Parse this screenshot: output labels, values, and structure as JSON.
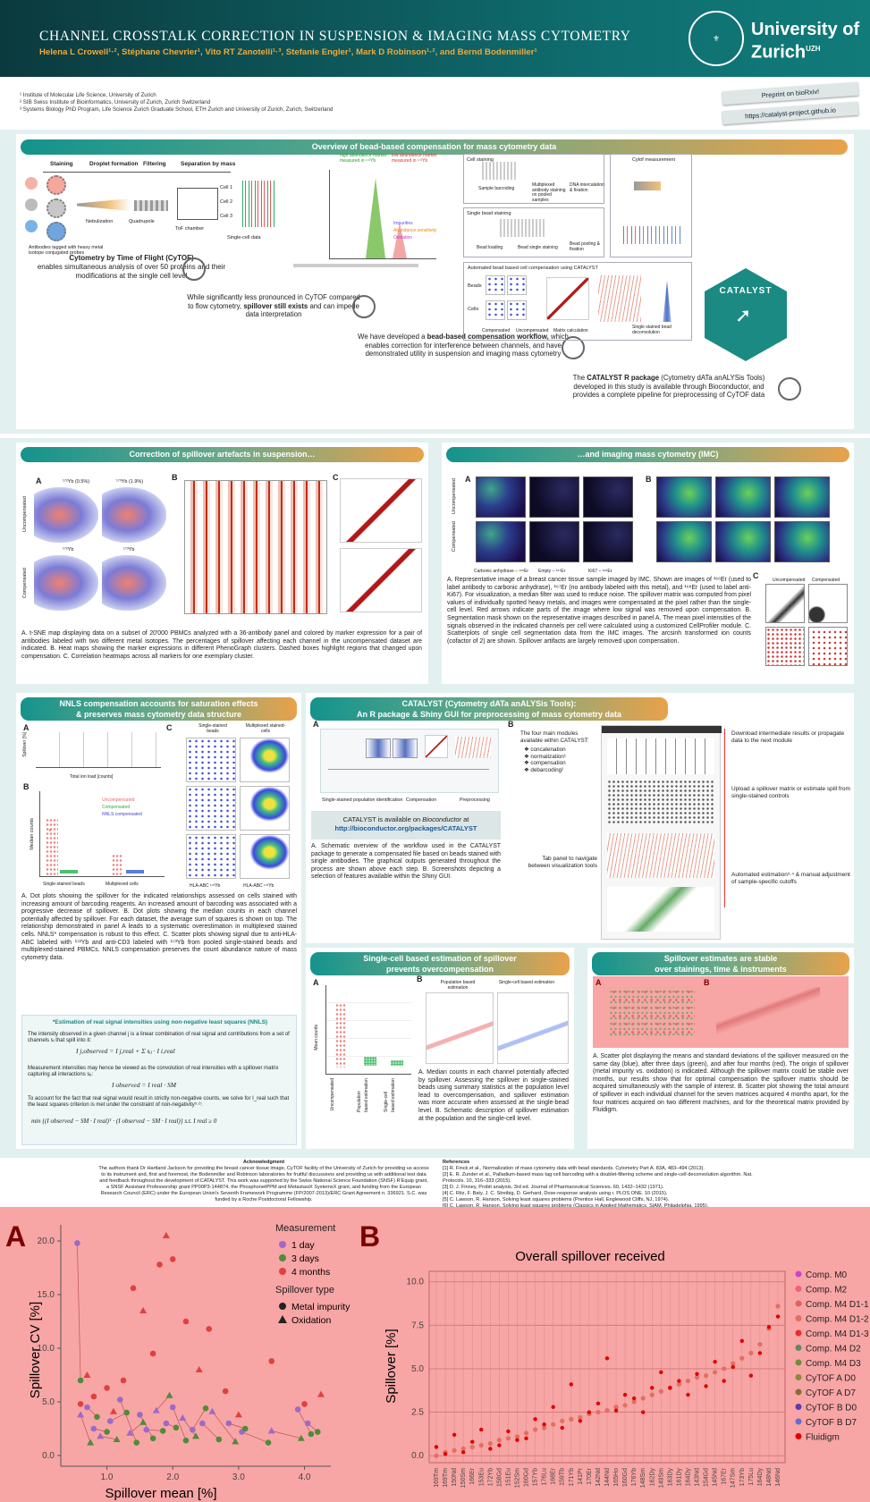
{
  "header": {
    "title": "CHANNEL CROSSTALK CORRECTION IN SUSPENSION & IMAGING MASS CYTOMETRY",
    "authors": "Helena L Crowell¹·², Stéphane Chevrier¹, Vito RT Zanotelli¹·³, Stefanie Engler¹, Mark D Robinson¹·², and Bernd Bodenmiller¹",
    "university": "University of Zurich",
    "uzh": "UZH",
    "preprint": "Preprint on bioRxiv!",
    "url": "https://catalyst-project.github.io"
  },
  "affiliations": [
    "¹ Institute of Molecular Life Science, University of Zurich",
    "² SIB Swiss Institute of Bioinformatics, University of Zurich, Zurich Switzerland",
    "³ Systems Biology PhD Program, Life Science Zurich Graduate School, ETH Zurich and University of Zurich, Zurich, Switzerland"
  ],
  "overview": {
    "title": "Overview of bead-based compensation for mass cytometry data",
    "steps": [
      "Staining",
      "Droplet formation",
      "Filtering",
      "Separation by mass"
    ],
    "labels": {
      "antibodies": "Antibodies tagged with heavy metal isotope conjugated probes",
      "nebulization": "Nebulization",
      "quadrupole": "Quadrupole",
      "tof": "ToF chamber",
      "singlecell": "Single-cell data",
      "cell1": "Cell 1",
      "cell2": "Cell 2",
      "cell3": "Cell 3",
      "high": "high abundance marker measured in ¹⁷²Yb",
      "low": "low abundance marker measured in ¹⁷³Yb",
      "impurities": "Impurities",
      "abund": "Abundance sensitivity",
      "oxid": "Oxidation"
    },
    "cytof_title": "Cytometry by Time of Flight (CyTOF)",
    "cytof_text": "enables simultaneous analysis of over 50 proteins and their modifications at the single cell level",
    "spill_text1": "While significantly less pronounced in CyTOF compared to flow cytometry,",
    "spill_bold": "spillover still exists",
    "spill_text2": "and can impede data interpretation",
    "work_text1": "We have developed a",
    "work_bold": "bead-based compensation workflow,",
    "work_text2": "which enables correction for interference between channels, and have demonstrated utility in suspension and imaging mass cytometry",
    "pkg_text1": "The",
    "pkg_bold": "CATALYST R package",
    "pkg_text2": "(Cytometry dATa anALYSis Tools) developed in this study is available through Bioconductor, and provides a complete pipeline for preprocessing of CyTOF data",
    "right": {
      "cellstain": "Cell staining",
      "barcoding": "Sample barcoding",
      "multiplex": "Multiplexed antibody staining on pooled samples",
      "dna": "DNA intercalation & fixation",
      "beadstain": "Single bead staining",
      "beadload": "Bead loading",
      "beadsingle": "Bead single staining",
      "beadpool": "Bead pooling & fixation",
      "cytof": "Cytof measurement",
      "auto": "Automated bead based cell compensation using CATALYST",
      "beads": "Beads",
      "cells": "Cells",
      "comp": "Compensated",
      "uncomp": "Uncompensated",
      "matrix": "Matrix calculation",
      "deconv": "Single stained bead deconvolution",
      "catalyst": "CATALYST"
    }
  },
  "susp": {
    "title": "Correction of spillover artefacts in suspension…",
    "a": "A",
    "b": "B",
    "c": "C",
    "yb1": "¹⁷²Yb (0.5%)",
    "yb2": "¹⁷³Yb (1.9%)",
    "yb3": "¹⁷²Yb",
    "yb4": "¹⁷³Yb",
    "uncomp": "Uncompensated",
    "comp": "Compensated",
    "caption": "A. t-SNE map displaying data on a subset of 20'000 PBMCs analyzed with a 36-antibody panel and colored by marker expression for a pair of antibodies labeled with two different metal isotopes. The percentages of spillover affecting each channel in the uncompensated dataset are indicated. B. Heat maps showing the marker expressions in different PhenoGraph clusters. Dashed boxes highlight regions that changed upon compensation. C. Correlation heatmaps across all markers for one exemplary cluster."
  },
  "imc": {
    "title": "…and imaging mass cytometry (IMC)",
    "a": "A",
    "b": "B",
    "c": "C",
    "uncomp": "Uncompensated",
    "comp": "Compensated",
    "l1": "Carbonic anhydrase – ¹⁶⁶Er",
    "l2": "Empty – ¹⁶⁷Er",
    "l3": "Ki67 – ¹⁶⁸Er",
    "caption": "A. Representative image of a breast cancer tissue sample imaged by IMC. Shown are images of ¹⁶⁶Er (used to label antibody to carbonic anhydrase), ¹⁶⁷Er (no antibody labeled with this metal), and ¹⁶⁸Er (used to label anti-Ki67). For visualization, a median filter was used to reduce noise. The spillover matrix was computed from pixel values of individually spotted heavy metals, and images were compensated at the pixel rather than the single-cell level. Red arrows indicate parts of the image where low signal was removed upon compensation. B. Segmentation mask shown on the representative images described in panel A. The mean pixel intensities of the signals observed in the indicated channels per cell were calculated using a customized CellProfiler module. C. Scatterplots of single cell segmentation data from the IMC images. The arcsinh transformed ion counts (cofactor of 2) are shown. Spillover artifacts are largely removed upon compensation."
  },
  "nnls": {
    "title1": "NNLS compensation accounts for saturation effects",
    "title2": "& preserves mass cytometry data structure",
    "a": "A",
    "b": "B",
    "c": "C",
    "xlabel": "Total ion load [counts]",
    "ylabel": "Spillover [%]",
    "medcounts": "Median counts",
    "single": "Single-stained beads",
    "multi": "Multiplexed cells",
    "leg": [
      "Uncompensated",
      "Compensated",
      "NNLS compensated"
    ],
    "sbeads": "Single-stained beads",
    "mcells": "Multiplexed stained-cells",
    "hla": "HLA-ABC ¹⁷²Yb",
    "caption": "A. Dot plots showing the spillover for the indicated relationships assessed on cells stained with increasing amount of barcoding reagents. An increased amount of barcoding was associated with a progressive decrease of spillover. B. Dot plots showing the median counts in each channel potentially affected by spillover. For each dataset, the average sum of squares is shown on top. The relationship demonstrated in panel A leads to a systematic overestimation in multiplexed stained cells. NNLS* compensation is robust to this effect. C. Scatter plots showing signal due to anti-HLA-ABC labeled with ¹⁷²Yb and anti-CD3 labeled with ¹⁷³Yb from pooled single-stained beads and multiplexed-stained PBMCs. NNLS compensation preserves the count abundance nature of mass cytometry data.",
    "box_title": "*Estimation of real signal intensities using non-negative least squares (NNLS)",
    "box1": "The intensity observed in a given channel j is a linear combination of real signal and contributions from a set of channels sᵢ that spill into it:",
    "box2": "Measurement intensities may hence be viewed as the convolution of real intensities with a spillover matrix capturing all interactions sᵢⱼ:",
    "box3": "To account for the fact that real signal would result in strictly non-negative counts, we solve for I_real such that the least squares criterion is met under the constraint of non-negativity⁵·⁶:",
    "eq1": "I j,observed = I j,real + Σ sᵢⱼ · I i,real",
    "eq2": "I observed = I real · SM",
    "eq3": "min {(I observed − SM · I real)ᵀ · (I observed − SM · I real)}  s.t. I real ≥ 0"
  },
  "cat": {
    "title1": "CATALYST (Cytometry dATa anALYSis Tools):",
    "title2": "An R package & Shiny GUI for preprocessing of mass cytometry data",
    "a": "A",
    "b": "B",
    "w1": "Single-stained population identification",
    "w2": "Compensation",
    "w3": "Preprocessing",
    "modules_intro": "The four main modules available within CATALYST:",
    "modules": [
      "concatenation",
      "normalization¹",
      "compensation",
      "debarcoding²"
    ],
    "avail1": "CATALYST is available on",
    "avail_i": "Bioconductor",
    "avail2": "at",
    "avail_url": "http://bioconductor.org/packages/CATALYST",
    "ann1": "Download intermediate results or propagate data to the next module",
    "ann2": "Upload a spillover matrix or estimate spill from single-stained controls",
    "ann3": "Automated estimation³·⁴ & manual adjustment of sample-specific cutoffs",
    "ann4": "Tab panel to navigate between visualization tools",
    "caption": "A. Schematic overview of the workflow used in the CATALYST package to generate a compensated file based on beads stained with single antibodies. The graphical outputs generated throughout the process are shown above each step. B. Screenshots depicting a selection of features available within the Shiny GUI."
  },
  "sc": {
    "title1": "Single-cell based estimation of spillover",
    "title2": "prevents overcompensation",
    "a": "A",
    "b": "B",
    "ylabel": "Mean counts",
    "x1": "Uncompensated",
    "x2": "Population based estimation",
    "x3": "Single-cell based estimation",
    "pop": "Population based estimation",
    "scell": "Single-cell based estimation",
    "caption": "A. Median counts in each channel potentially affected by spillover. Assessing the spillover in single-stained beads using summary statistics at the population level lead to overcompensation, and spillover estimation was more accurate when assessed at the single-bead level. B. Schematic description of spillover estimation at the population and the single-cell level."
  },
  "stable": {
    "title1": "Spillover estimates are stable",
    "title2": "over stainings, time & instruments",
    "caption": "A. Scatter plot displaying the means and standard deviations of the spillover measured on the same day (blue), after three days (green), and after four months (red). The origin of spillover (metal impurity vs. oxidation) is indicated. Although the spillover matrix could be stable over months, our results show that for optimal compensation the spillover matrix should be acquired simultaneously with the sample of interest. B. Scatter plot showing the total amount of spillover in each individual channel for the seven matrices acquired 4 months apart, for the four matrices acquired on two different machines, and for the theoretical matrix provided by Fluidigm."
  },
  "ack": {
    "title": "Acknowledgment",
    "text": "The authors thank Dr Hartland Jackson for providing the breast cancer tissue image, CyTOF facility of the University of Zurich for providing us access to its instrument and, first and foremost, the Bodenmiller and Robinson laboratories for fruitful discussions and providing us with additional test data and feedback throughout the development of CATALYST. This work was supported by the Swiss National Science Foundation (SNSF) R'Equip grant, a SNSF Assistant Professorship grant PP00P3-144874, the PhosphonetPPM and MetastasiX SystemsX grant, and funding from the European Research Council (ERC) under the European Union's Seventh Framework Programme (FP/2007-2013)/ERC Grant Agreement n. 336921. S.C. was funded by a Roche Postdoctoral Fellowship."
  },
  "refs": {
    "title": "References",
    "items": [
      "[1] R. Finck et al., Normalization of mass cytometry data with bead standards. Cytometry Part A. 83A, 483–494 (2013).",
      "[2] E. R. Zunder et al., Palladium-based mass tag cell barcoding with a doublet-filtering scheme and single-cell deconvolution algorithm. Nat. Protocols. 10, 316–333 (2015).",
      "[3] D. J. Finney, Probit analysis, 3rd ed. Journal of Pharmaceutical Sciences. 60, 1432–1432 (1971).",
      "[4] C. Ritz, F. Baty, J. C. Streibig, D. Gerhard, Dose-response analysis using r. PLOS ONE. 10 (2015).",
      "[5] C. Lawson, R. Hanson, Solving least squares problems (Prentice Hall, Englewood Cliffs, NJ, 1974).",
      "[6] C. Lawson, R. Hanson, Solving least squares problems (Classics in Applied Mathematics, SIAM, Philadelphia, 1995)."
    ]
  },
  "big": {
    "a": "A",
    "b": "B",
    "a_xlabel": "Spillover mean [%]",
    "a_ylabel": "Spillover CV [%]",
    "a_leg_title1": "Measurement",
    "a_leg1": [
      "1 day",
      "3 days",
      "4 months"
    ],
    "a_leg_title2": "Spillover type",
    "a_leg2": [
      "Metal impurity",
      "Oxidation"
    ],
    "b_title": "Overall spillover received",
    "b_ylabel": "Spillover [%]",
    "b_leg": [
      "Comp. M0",
      "Comp. M2",
      "Comp. M4 D1-1",
      "Comp. M4 D1-2",
      "Comp. M4 D1-3",
      "Comp. M4 D2",
      "Comp. M4 D3",
      "CyTOF A D0",
      "CyTOF A D7",
      "CyTOF B D0",
      "CyTOF B D7",
      "Fluidigm"
    ]
  },
  "chart_data": [
    {
      "type": "scatter",
      "xlabel": "Spillover mean [%]",
      "ylabel": "Spillover CV [%]",
      "xticks": [
        1.0,
        2.0,
        3.0,
        4.0
      ],
      "yticks": [
        0.0,
        5.0,
        10.0,
        15.0,
        20.0
      ],
      "xlim": [
        0.3,
        4.4
      ],
      "ylim": [
        -1,
        21.5
      ],
      "series": [
        {
          "name": "1 day",
          "color": "#9b6ac9",
          "points": [
            [
              0.55,
              19.8
            ],
            [
              0.6,
              3.8
            ],
            [
              0.7,
              4.5
            ],
            [
              0.8,
              2.5
            ],
            [
              0.9,
              1.8
            ],
            [
              1.05,
              3.2
            ],
            [
              1.2,
              5.2
            ],
            [
              1.35,
              2.1
            ],
            [
              1.5,
              3.8
            ],
            [
              1.6,
              2.4
            ],
            [
              1.75,
              4.2
            ],
            [
              1.9,
              3.0
            ],
            [
              2.0,
              4.5
            ],
            [
              2.15,
              3.5
            ],
            [
              2.3,
              2.4
            ],
            [
              2.45,
              3.0
            ],
            [
              2.6,
              4.1
            ],
            [
              2.85,
              3.0
            ],
            [
              3.05,
              2.2
            ],
            [
              3.5,
              2.3
            ],
            [
              3.9,
              4.3
            ],
            [
              4.05,
              3.0
            ]
          ]
        },
        {
          "name": "3 days",
          "color": "#4e8c3a",
          "points": [
            [
              0.6,
              7.0
            ],
            [
              0.75,
              1.2
            ],
            [
              0.85,
              3.6
            ],
            [
              1.0,
              2.2
            ],
            [
              1.15,
              1.5
            ],
            [
              1.3,
              4.0
            ],
            [
              1.45,
              1.2
            ],
            [
              1.55,
              3.1
            ],
            [
              1.7,
              1.6
            ],
            [
              1.85,
              2.3
            ],
            [
              1.95,
              5.6
            ],
            [
              2.05,
              2.6
            ],
            [
              2.2,
              1.4
            ],
            [
              2.35,
              1.8
            ],
            [
              2.5,
              4.4
            ],
            [
              2.7,
              1.5
            ],
            [
              2.95,
              1.3
            ],
            [
              3.1,
              2.5
            ],
            [
              3.45,
              1.2
            ],
            [
              3.95,
              1.6
            ],
            [
              4.1,
              2.0
            ],
            [
              4.2,
              2.2
            ]
          ]
        },
        {
          "name": "4 months",
          "color": "#e04040",
          "points": [
            [
              0.6,
              4.8
            ],
            [
              0.7,
              7.5
            ],
            [
              0.8,
              5.5
            ],
            [
              1.0,
              6.3
            ],
            [
              1.1,
              4.1
            ],
            [
              1.25,
              7.0
            ],
            [
              1.4,
              15.6
            ],
            [
              1.55,
              13.5
            ],
            [
              1.7,
              9.5
            ],
            [
              1.8,
              17.8
            ],
            [
              1.9,
              20.5
            ],
            [
              2.0,
              18.3
            ],
            [
              2.2,
              12.5
            ],
            [
              2.4,
              8.0
            ],
            [
              2.55,
              11.8
            ],
            [
              2.8,
              6.0
            ],
            [
              3.0,
              3.8
            ],
            [
              3.5,
              8.8
            ],
            [
              4.0,
              4.8
            ],
            [
              4.25,
              5.7
            ]
          ]
        }
      ]
    },
    {
      "type": "scatter",
      "title": "Overall spillover received",
      "ylabel": "Spillover [%]",
      "yticks": [
        0.0,
        2.5,
        5.0,
        7.5,
        10.0
      ],
      "ylim": [
        -0.4,
        10.6
      ],
      "x": [
        "169Tm",
        "169Tm",
        "150Nd",
        "150Sm",
        "166Er",
        "153Eu",
        "172Yb",
        "158Gd",
        "151Eu",
        "152Sm",
        "160Gd",
        "157Yb",
        "176Lu",
        "168Er",
        "159Tb",
        "171Yb",
        "141Pr",
        "170Er",
        "142Nd",
        "144Nd",
        "165Ho",
        "160Gd",
        "176Yb",
        "148Sm",
        "162Dy",
        "149Sm",
        "163Dy",
        "161Dy",
        "164Dy",
        "143Nd",
        "154Gd",
        "145Nd",
        "167Er",
        "147Sm",
        "173Yb",
        "175Lu",
        "164Dy",
        "148Nd",
        "146Nd"
      ],
      "series": [
        {
          "name": "Comp. M4 D1-1",
          "color": "#e07060",
          "values": [
            0.0,
            0.2,
            0.3,
            0.4,
            0.5,
            0.6,
            0.7,
            0.9,
            1.0,
            1.1,
            1.3,
            1.5,
            1.6,
            1.8,
            2.0,
            2.1,
            2.2,
            2.4,
            2.5,
            2.6,
            2.8,
            2.9,
            3.1,
            3.3,
            3.5,
            3.7,
            3.9,
            4.1,
            4.3,
            4.5,
            4.6,
            4.8,
            5.0,
            5.3,
            5.6,
            5.9,
            6.4,
            7.3,
            8.6
          ]
        },
        {
          "name": "Fluidigm",
          "color": "#e00000",
          "values": [
            0.5,
            0.1,
            1.2,
            0.2,
            0.8,
            1.5,
            0.4,
            0.6,
            1.4,
            0.9,
            1.0,
            2.1,
            1.8,
            2.8,
            1.6,
            4.1,
            2.0,
            2.5,
            3.0,
            5.6,
            2.6,
            3.5,
            3.3,
            2.5,
            3.9,
            4.8,
            3.9,
            4.3,
            3.5,
            4.7,
            4.0,
            5.4,
            4.3,
            5.1,
            6.6,
            4.6,
            5.9,
            7.4,
            8.0
          ]
        }
      ]
    }
  ]
}
